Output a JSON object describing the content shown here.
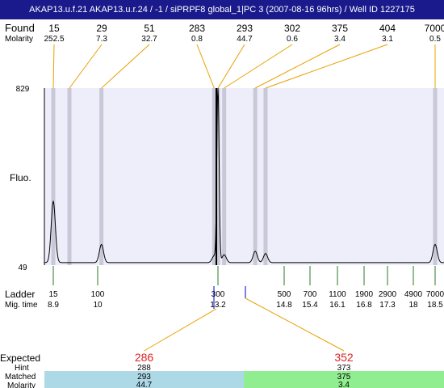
{
  "header": {
    "title": "AKAP13.u.f.21  AKAP13.u.r.24 / -1 / siPRPF8 global_1|PC 3 (2007-08-16 96hrs) / Well ID 1227175"
  },
  "labels": {
    "found": "Found",
    "molarity": "Molarity",
    "fluo": "Fluo.",
    "ladder": "Ladder",
    "mig_time": "Mig. time",
    "expected": "Expected",
    "hint": "Hint",
    "matched": "Matched",
    "molarity_bottom": "Molarity"
  },
  "colors": {
    "title_bg": "#1a1a8c",
    "plot_bg": "#eeeefa",
    "band": "#c8c8d8",
    "found_line": "#e8a000",
    "ladder_tick": "#2a7a2a",
    "expected_text": "#e02020",
    "matched_left": "#add8e6",
    "matched_right": "#90ee90",
    "marker": "#0000cc"
  },
  "chart_data": {
    "type": "line",
    "title": "",
    "ylabel": "Fluo.",
    "ylim": [
      49,
      829
    ],
    "y_tick_labels": [
      "829",
      "49"
    ],
    "found_peaks": [
      {
        "size": "15",
        "molarity": "252.5",
        "time": 8.9
      },
      {
        "size": "29",
        "molarity": "7.3",
        "time": 9.3
      },
      {
        "size": "51",
        "molarity": "32.7",
        "time": 10.1
      },
      {
        "size": "283",
        "molarity": "0.8",
        "time": 13.1
      },
      {
        "size": "293",
        "molarity": "44.7",
        "time": 13.2
      },
      {
        "size": "302",
        "molarity": "0.6",
        "time": 13.35
      },
      {
        "size": "375",
        "molarity": "3.4",
        "time": 14.1
      },
      {
        "size": "404",
        "molarity": "3.1",
        "time": 14.35
      },
      {
        "size": "7000",
        "molarity": "0.5",
        "time": 18.5
      }
    ],
    "ladder": [
      {
        "size": "15",
        "time": "8.9"
      },
      {
        "size": "100",
        "time": "10"
      },
      {
        "size": "300",
        "time": "13.2"
      },
      {
        "size": "500",
        "time": "14.8"
      },
      {
        "size": "700",
        "time": "15.4"
      },
      {
        "size": "1100",
        "time": "16.1"
      },
      {
        "size": "1900",
        "time": "16.8"
      },
      {
        "size": "2900",
        "time": "17.3"
      },
      {
        "size": "4900",
        "time": "18"
      },
      {
        "size": "7000",
        "time": "18.5"
      }
    ],
    "trace": {
      "baseline": 60,
      "peaks": [
        {
          "time": 8.9,
          "height": 330
        },
        {
          "time": 10.1,
          "height": 140
        },
        {
          "time": 13.1,
          "height": 90
        },
        {
          "time": 13.2,
          "height": 829
        },
        {
          "time": 13.35,
          "height": 95
        },
        {
          "time": 14.1,
          "height": 110
        },
        {
          "time": 14.35,
          "height": 100
        },
        {
          "time": 18.5,
          "height": 140
        }
      ]
    },
    "expected": [
      {
        "value": "286",
        "hint": "288",
        "matched": "293",
        "molarity": "44.7",
        "time": 13.2
      },
      {
        "value": "352",
        "hint": "373",
        "matched": "375",
        "molarity": "3.4",
        "time": 13.6
      }
    ]
  }
}
